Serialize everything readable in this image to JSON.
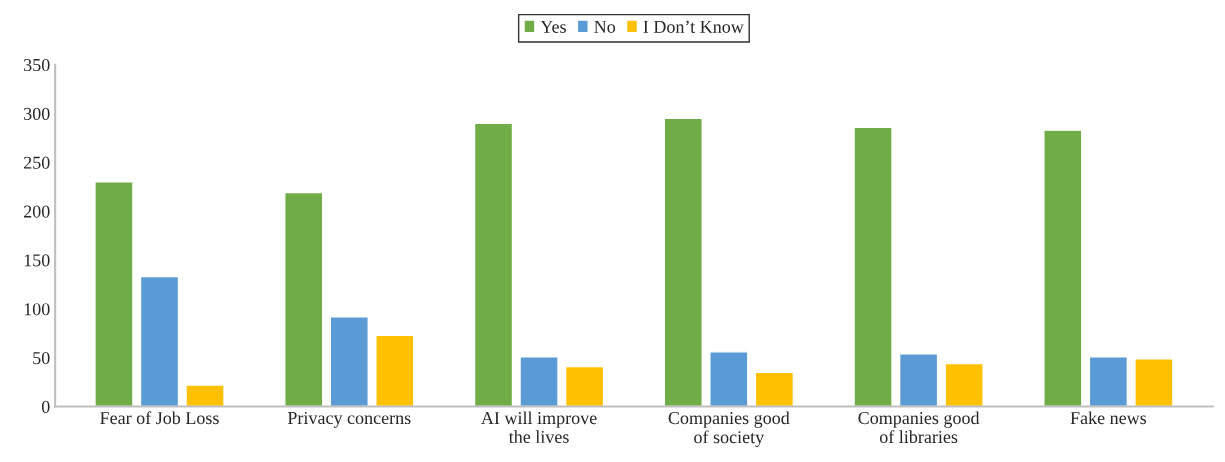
{
  "chart_data": {
    "type": "bar",
    "categories": [
      "Fear of Job Loss",
      "Privacy concerns",
      "AI will improve\nthe lives",
      "Companies good\nof society",
      "Companies good\nof libraries",
      "Fake news"
    ],
    "series": [
      {
        "name": "Yes",
        "color": "#70ad47",
        "values": [
          230,
          219,
          290,
          295,
          286,
          283
        ]
      },
      {
        "name": "No",
        "color": "#5b9bd5",
        "values": [
          133,
          92,
          51,
          56,
          54,
          51
        ]
      },
      {
        "name": "I Don’t Know",
        "color": "#ffc000",
        "values": [
          22,
          73,
          41,
          35,
          44,
          49
        ]
      }
    ],
    "ylim": [
      0,
      350
    ],
    "yticks": [
      0,
      50,
      100,
      150,
      200,
      250,
      300,
      350
    ],
    "grid": false,
    "legend": "top"
  }
}
